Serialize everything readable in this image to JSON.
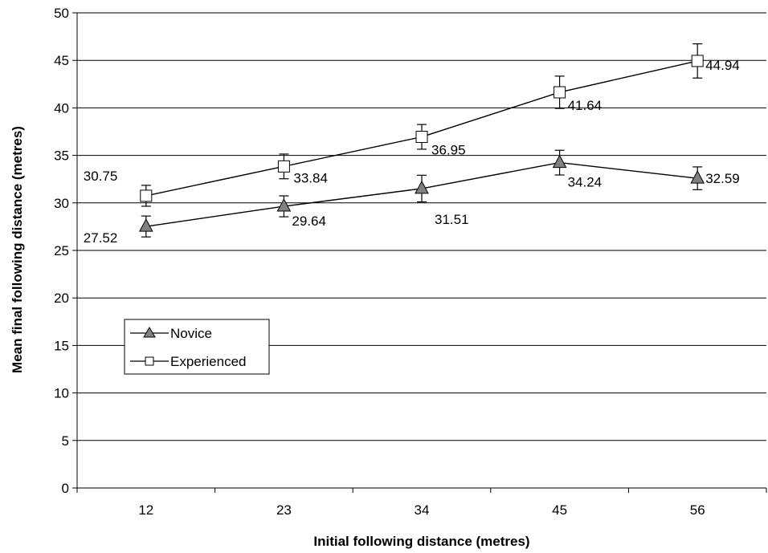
{
  "chart_data": {
    "type": "line",
    "title": "",
    "xlabel": "Initial following distance (metres)",
    "ylabel": "Mean final following distance (metres)",
    "categories": [
      "12",
      "23",
      "34",
      "45",
      "56"
    ],
    "ylim": [
      0,
      50
    ],
    "yticks": [
      "0",
      "5",
      "10",
      "15",
      "20",
      "25",
      "30",
      "35",
      "40",
      "45",
      "50"
    ],
    "grid": true,
    "legend_position": "lower-left",
    "series": [
      {
        "name": "Novice",
        "marker": "triangle",
        "marker_fill": "#808080",
        "values": [
          27.52,
          29.64,
          31.51,
          34.24,
          32.59
        ],
        "labels": [
          "27.52",
          "29.64",
          "31.51",
          "34.24",
          "32.59"
        ],
        "error": [
          1.1,
          1.1,
          1.4,
          1.3,
          1.2
        ]
      },
      {
        "name": "Experienced",
        "marker": "square",
        "marker_fill": "#ffffff",
        "values": [
          30.75,
          33.84,
          36.95,
          41.64,
          44.94
        ],
        "labels": [
          "30.75",
          "33.84",
          "36.95",
          "41.64",
          "44.94"
        ],
        "error": [
          1.1,
          1.3,
          1.3,
          1.7,
          1.8
        ]
      }
    ]
  }
}
